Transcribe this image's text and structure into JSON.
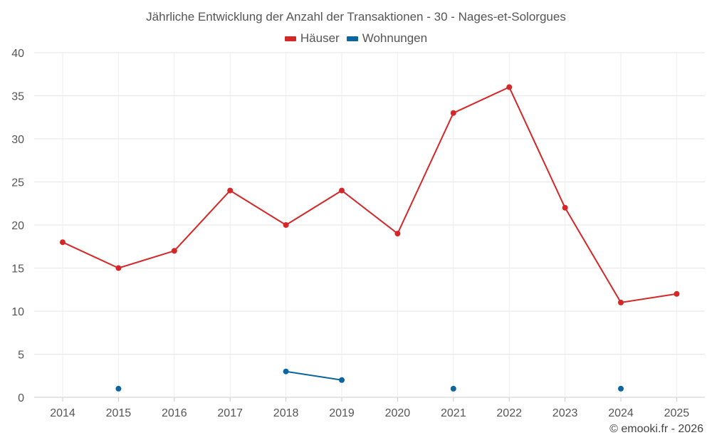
{
  "chart_data": {
    "type": "line",
    "title": "Jährliche Entwicklung der Anzahl der Transaktionen - 30 - Nages-et-Solorgues",
    "categories": [
      "2014",
      "2015",
      "2016",
      "2017",
      "2018",
      "2019",
      "2020",
      "2021",
      "2022",
      "2023",
      "2024",
      "2025"
    ],
    "series": [
      {
        "name": "Häuser",
        "color": "#d62728",
        "values": [
          18,
          15,
          17,
          24,
          20,
          24,
          19,
          33,
          36,
          22,
          11,
          12
        ]
      },
      {
        "name": "Wohnungen",
        "color": "#0b65a0",
        "values": [
          null,
          1,
          null,
          null,
          3,
          2,
          null,
          1,
          null,
          null,
          1,
          null
        ]
      }
    ],
    "ylim": [
      0,
      40
    ],
    "yticks": [
      0,
      5,
      10,
      15,
      20,
      25,
      30,
      35,
      40
    ],
    "xlabel": "",
    "ylabel": "",
    "grid": true,
    "legend": "top-center"
  },
  "copyright": "© emooki.fr - 2026"
}
